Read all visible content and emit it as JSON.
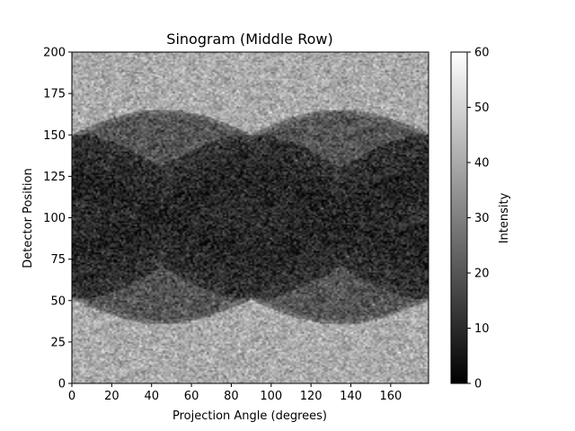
{
  "chart_data": {
    "type": "heatmap",
    "title": "Sinogram (Middle Row)",
    "xlabel": "Projection Angle (degrees)",
    "ylabel": "Detector Position",
    "xlim": [
      0,
      179
    ],
    "ylim": [
      0,
      200
    ],
    "x_ticks": [
      "0",
      "20",
      "40",
      "60",
      "80",
      "100",
      "120",
      "140",
      "160"
    ],
    "y_ticks": [
      "0",
      "25",
      "50",
      "75",
      "100",
      "125",
      "150",
      "175",
      "200"
    ],
    "colormap": "gray",
    "colorbar": {
      "label": "Intensity",
      "range": [
        0,
        60
      ],
      "ticks": [
        "0",
        "10",
        "20",
        "30",
        "40",
        "50",
        "60"
      ]
    },
    "structure": {
      "background_intensity": 40,
      "outer_band_intensity": 20,
      "inner_band_intensity": 8,
      "outer_band_half_width": [
        50,
        65
      ],
      "outer_band_period_deg": 90,
      "outer_band_center": 100,
      "inner_band": [
        [
          0,
          105,
          150
        ],
        [
          0,
          55,
          95
        ],
        [
          90,
          55,
          150
        ]
      ]
    }
  }
}
